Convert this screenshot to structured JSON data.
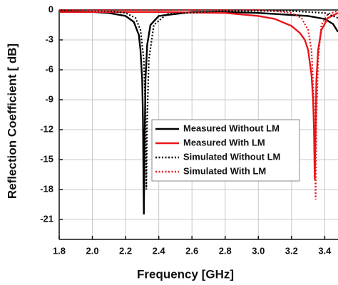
{
  "chart_data": {
    "type": "line",
    "x_label": "Frequency [GHz]",
    "y_label": "Reflection Coefficient [ dB]",
    "xlim": [
      1.8,
      3.48
    ],
    "ylim": [
      -23,
      0
    ],
    "xticks": [
      1.8,
      {
        "value": 2.0,
        "label": "2.0"
      },
      2.2,
      2.4,
      2.6,
      2.8,
      {
        "value": 3.0,
        "label": "3.0"
      },
      3.2,
      3.4
    ],
    "yticks": [
      0,
      -3,
      -6,
      -9,
      -12,
      -15,
      -18,
      -21
    ],
    "grid": true,
    "series": [
      {
        "name": "Measured Without LM",
        "color": "#000000",
        "linestyle": "solid",
        "x": [
          1.8,
          2.0,
          2.1,
          2.2,
          2.25,
          2.28,
          2.29,
          2.3,
          2.305,
          2.31,
          2.315,
          2.32,
          2.33,
          2.35,
          2.4,
          2.6,
          2.8,
          3.0,
          3.2,
          3.3,
          3.4,
          3.45,
          3.48
        ],
        "values": [
          -0.1,
          -0.2,
          -0.3,
          -0.6,
          -1.2,
          -2.5,
          -4,
          -7,
          -11,
          -20.5,
          -13,
          -7,
          -3.5,
          -1.5,
          -0.6,
          -0.2,
          -0.2,
          -0.3,
          -0.5,
          -0.6,
          -0.9,
          -1.4,
          -2.2
        ]
      },
      {
        "name": "Measured With LM",
        "color": "#e8161b",
        "linestyle": "solid",
        "x": [
          1.8,
          2.4,
          2.8,
          3.0,
          3.1,
          3.2,
          3.25,
          3.28,
          3.3,
          3.32,
          3.33,
          3.335,
          3.34,
          3.345,
          3.35,
          3.36,
          3.38,
          3.42,
          3.48
        ],
        "values": [
          -0.2,
          -0.2,
          -0.3,
          -0.6,
          -0.9,
          -1.6,
          -2.3,
          -3,
          -4,
          -6.5,
          -9,
          -12,
          -17,
          -12,
          -7,
          -4,
          -2,
          -0.8,
          -0.3
        ]
      },
      {
        "name": "Simulated Without LM",
        "color": "#000000",
        "linestyle": "dotted",
        "x": [
          1.8,
          2.1,
          2.2,
          2.26,
          2.29,
          2.31,
          2.32,
          2.325,
          2.33,
          2.34,
          2.37,
          2.45,
          2.8,
          3.2,
          3.4,
          3.48
        ],
        "values": [
          0,
          -0.1,
          -0.3,
          -0.8,
          -2,
          -5,
          -10,
          -18,
          -11,
          -5,
          -1.5,
          -0.4,
          -0.1,
          -0.1,
          -0.3,
          -0.8
        ]
      },
      {
        "name": "Simulated With LM",
        "color": "#e8161b",
        "linestyle": "dotted",
        "x": [
          1.8,
          3.0,
          3.1,
          3.2,
          3.26,
          3.3,
          3.32,
          3.335,
          3.345,
          3.35,
          3.36,
          3.38,
          3.42,
          3.48
        ],
        "values": [
          0,
          0,
          -0.1,
          -0.3,
          -0.8,
          -2,
          -4,
          -9,
          -19,
          -11,
          -5,
          -1.5,
          -0.4,
          -0.1
        ]
      }
    ]
  }
}
